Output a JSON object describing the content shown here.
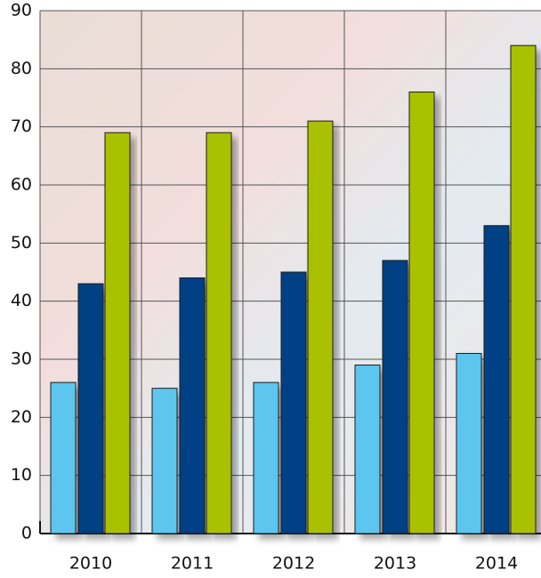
{
  "chart_data": {
    "type": "bar",
    "categories": [
      "2010",
      "2011",
      "2012",
      "2013",
      "2014"
    ],
    "series": [
      {
        "color": "#5bc6ee",
        "values": [
          26,
          25,
          26,
          29,
          31
        ]
      },
      {
        "color": "#033f85",
        "values": [
          43,
          44,
          45,
          47,
          53
        ]
      },
      {
        "color": "#a9c102",
        "values": [
          69,
          69,
          71,
          76,
          84
        ]
      }
    ],
    "ylim": [
      0,
      90
    ],
    "yticks": [
      0,
      10,
      20,
      30,
      40,
      50,
      60,
      70,
      80,
      90
    ],
    "grid": true
  }
}
